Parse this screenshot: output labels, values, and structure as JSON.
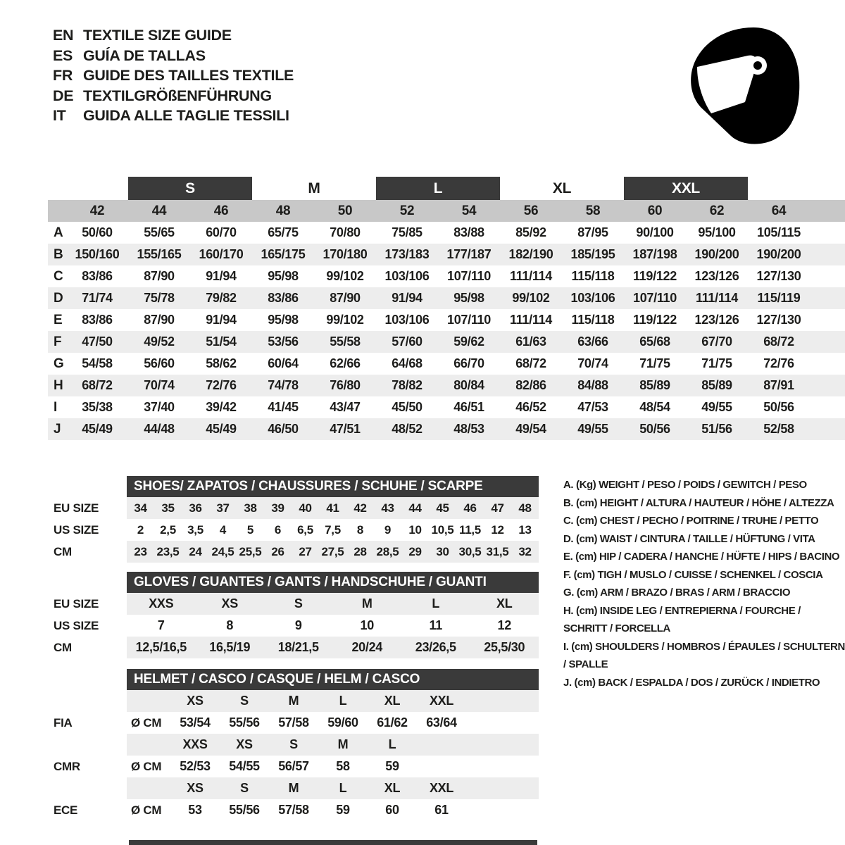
{
  "colors": {
    "dark_bar": "#3a3a3a",
    "numbers_band": "#c8c8c8",
    "row_shading": "#ededed",
    "text": "#1d1d1b"
  },
  "languages": [
    {
      "code": "EN",
      "label": "TEXTILE SIZE GUIDE"
    },
    {
      "code": "ES",
      "label": "GUÍA DE TALLAS"
    },
    {
      "code": "FR",
      "label": "GUIDE DES TAILLES TEXTILE"
    },
    {
      "code": "DE",
      "label": "TEXTILGRÖßENFÜHRUNG"
    },
    {
      "code": "IT",
      "label": "GUIDA ALLE TAGLIE TESSILI"
    }
  ],
  "main_table": {
    "size_bands": [
      {
        "label": "S",
        "highlighted": true
      },
      {
        "label": "M",
        "highlighted": false
      },
      {
        "label": "L",
        "highlighted": true
      },
      {
        "label": "XL",
        "highlighted": false
      },
      {
        "label": "XXL",
        "highlighted": true
      }
    ],
    "columns": [
      "42",
      "44",
      "46",
      "48",
      "50",
      "52",
      "54",
      "56",
      "58",
      "60",
      "62",
      "64"
    ],
    "rows": [
      {
        "label": "A",
        "values": [
          "50/60",
          "55/65",
          "60/70",
          "65/75",
          "70/80",
          "75/85",
          "83/88",
          "85/92",
          "87/95",
          "90/100",
          "95/100",
          "105/115"
        ]
      },
      {
        "label": "B",
        "values": [
          "150/160",
          "155/165",
          "160/170",
          "165/175",
          "170/180",
          "173/183",
          "177/187",
          "182/190",
          "185/195",
          "187/198",
          "190/200",
          "190/200"
        ]
      },
      {
        "label": "C",
        "values": [
          "83/86",
          "87/90",
          "91/94",
          "95/98",
          "99/102",
          "103/106",
          "107/110",
          "111/114",
          "115/118",
          "119/122",
          "123/126",
          "127/130"
        ]
      },
      {
        "label": "D",
        "values": [
          "71/74",
          "75/78",
          "79/82",
          "83/86",
          "87/90",
          "91/94",
          "95/98",
          "99/102",
          "103/106",
          "107/110",
          "111/114",
          "115/119"
        ]
      },
      {
        "label": "E",
        "values": [
          "83/86",
          "87/90",
          "91/94",
          "95/98",
          "99/102",
          "103/106",
          "107/110",
          "111/114",
          "115/118",
          "119/122",
          "123/126",
          "127/130"
        ]
      },
      {
        "label": "F",
        "values": [
          "47/50",
          "49/52",
          "51/54",
          "53/56",
          "55/58",
          "57/60",
          "59/62",
          "61/63",
          "63/66",
          "65/68",
          "67/70",
          "68/72"
        ]
      },
      {
        "label": "G",
        "values": [
          "54/58",
          "56/60",
          "58/62",
          "60/64",
          "62/66",
          "64/68",
          "66/70",
          "68/72",
          "70/74",
          "71/75",
          "71/75",
          "72/76"
        ]
      },
      {
        "label": "H",
        "values": [
          "68/72",
          "70/74",
          "72/76",
          "74/78",
          "76/80",
          "78/82",
          "80/84",
          "82/86",
          "84/88",
          "85/89",
          "85/89",
          "87/91"
        ]
      },
      {
        "label": "I",
        "values": [
          "35/38",
          "37/40",
          "39/42",
          "41/45",
          "43/47",
          "45/50",
          "46/51",
          "46/52",
          "47/53",
          "48/54",
          "49/55",
          "50/56"
        ]
      },
      {
        "label": "J",
        "values": [
          "45/49",
          "44/48",
          "45/49",
          "46/50",
          "47/51",
          "48/52",
          "48/53",
          "49/54",
          "49/55",
          "50/56",
          "51/56",
          "52/58"
        ]
      }
    ]
  },
  "shoes": {
    "title": "SHOES/ ZAPATOS / CHAUSSURES / SCHUHE / SCARPE",
    "rows": [
      {
        "label": "EU SIZE",
        "values": [
          "34",
          "35",
          "36",
          "37",
          "38",
          "39",
          "40",
          "41",
          "42",
          "43",
          "44",
          "45",
          "46",
          "47",
          "48"
        ]
      },
      {
        "label": "US SIZE",
        "values": [
          "2",
          "2,5",
          "3,5",
          "4",
          "5",
          "6",
          "6,5",
          "7,5",
          "8",
          "9",
          "10",
          "10,5",
          "11,5",
          "12",
          "13"
        ]
      },
      {
        "label": "CM",
        "values": [
          "23",
          "23,5",
          "24",
          "24,5",
          "25,5",
          "26",
          "27",
          "27,5",
          "28",
          "28,5",
          "29",
          "30",
          "30,5",
          "31,5",
          "32"
        ]
      }
    ]
  },
  "gloves": {
    "title": "GLOVES / GUANTES / GANTS / HANDSCHUHE / GUANTI",
    "rows": [
      {
        "label": "EU SIZE",
        "values": [
          "XXS",
          "XS",
          "S",
          "M",
          "L",
          "XL"
        ]
      },
      {
        "label": "US SIZE",
        "values": [
          "7",
          "8",
          "9",
          "10",
          "11",
          "12"
        ]
      },
      {
        "label": "CM",
        "values": [
          "12,5/16,5",
          "16,5/19",
          "18/21,5",
          "20/24",
          "23/26,5",
          "25,5/30"
        ]
      }
    ]
  },
  "helmet": {
    "title": "HELMET / CASCO / CASQUE / HELM / CASCO",
    "groups": [
      {
        "label": "FIA",
        "unit": "Ø CM",
        "sizes": [
          "XS",
          "S",
          "M",
          "L",
          "XL",
          "XXL"
        ],
        "values": [
          "53/54",
          "55/56",
          "57/58",
          "59/60",
          "61/62",
          "63/64"
        ]
      },
      {
        "label": "CMR",
        "unit": "Ø CM",
        "sizes": [
          "XXS",
          "XS",
          "S",
          "M",
          "L"
        ],
        "values": [
          "52/53",
          "54/55",
          "56/57",
          "58",
          "59"
        ]
      },
      {
        "label": "ECE",
        "unit": "Ø CM",
        "sizes": [
          "XS",
          "S",
          "M",
          "L",
          "XL",
          "XXL"
        ],
        "values": [
          "53",
          "55/56",
          "57/58",
          "59",
          "60",
          "61"
        ]
      }
    ]
  },
  "legend": {
    "items": [
      "A. (Kg) WEIGHT / PESO / POIDS / GEWITCH / PESO",
      "B. (cm) HEIGHT / ALTURA / HAUTEUR / HÖHE / ALTEZZA",
      "C. (cm) CHEST / PECHO / POITRINE / TRUHE / PETTO",
      "D. (cm) WAIST / CINTURA / TAILLE / HÜFTUNG / VITA",
      "E. (cm) HIP / CADERA / HANCHE / HÜFTE / HIPS / BACINO",
      "F. (cm) TIGH / MUSLO / CUISSE / SCHENKEL / COSCIA",
      "G. (cm) ARM / BRAZO / BRAS / ARM / BRACCIO",
      "H. (cm) INSIDE LEG / ENTREPIERNA / FOURCHE / SCHRITT / FORCELLA",
      "I. (cm) SHOULDERS / HOMBROS / ÉPAULES / SCHULTERN / SPALLE",
      "J. (cm) BACK / ESPALDA / DOS / ZURÜCK / INDIETRO"
    ]
  }
}
